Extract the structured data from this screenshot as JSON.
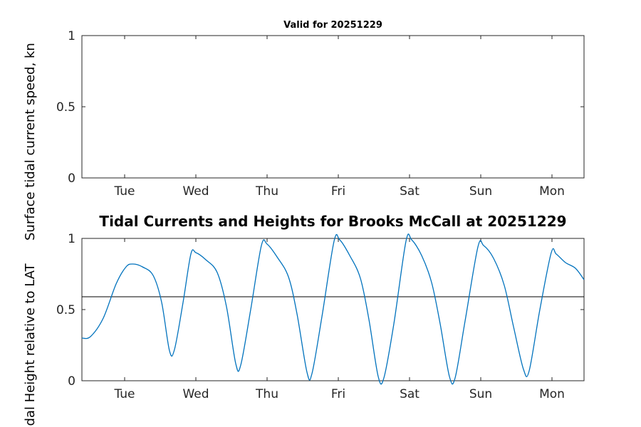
{
  "figure": {
    "background": "#ffffff",
    "axis_color": "#262626",
    "text_color": "#262626"
  },
  "chart_data": [
    {
      "type": "line",
      "title": "Valid for 20251229",
      "ylabel": "Surface tidal current speed, kn",
      "xlim": [
        0.4,
        7.45
      ],
      "ylim": [
        0,
        1
      ],
      "grid": false,
      "box": true,
      "axis_color": "#262626",
      "x_ticks": [
        {
          "value": 1,
          "label": "Tue"
        },
        {
          "value": 2,
          "label": "Wed"
        },
        {
          "value": 3,
          "label": "Thu"
        },
        {
          "value": 4,
          "label": "Fri"
        },
        {
          "value": 5,
          "label": "Sat"
        },
        {
          "value": 6,
          "label": "Sun"
        },
        {
          "value": 7,
          "label": "Mon"
        }
      ],
      "y_ticks": [
        {
          "value": 0,
          "label": "0"
        },
        {
          "value": 0.5,
          "label": "0.5"
        },
        {
          "value": 1,
          "label": "1"
        }
      ],
      "series": []
    },
    {
      "type": "line",
      "title": "Tidal Currents and Heights for Brooks McCall at 20251229",
      "ylabel": "Tidal Height relative to LAT",
      "xlim": [
        0.4,
        7.45
      ],
      "ylim": [
        0,
        1
      ],
      "grid": false,
      "box": true,
      "axis_color": "#262626",
      "x_ticks": [
        {
          "value": 1,
          "label": "Tue"
        },
        {
          "value": 2,
          "label": "Wed"
        },
        {
          "value": 3,
          "label": "Thu"
        },
        {
          "value": 4,
          "label": "Fri"
        },
        {
          "value": 5,
          "label": "Sat"
        },
        {
          "value": 6,
          "label": "Sun"
        },
        {
          "value": 7,
          "label": "Mon"
        }
      ],
      "y_ticks": [
        {
          "value": 0,
          "label": "0"
        },
        {
          "value": 0.5,
          "label": "0.5"
        },
        {
          "value": 1,
          "label": "1"
        }
      ],
      "reference_line": {
        "y": 0.59,
        "color": "#000000"
      },
      "series": [
        {
          "name": "tidal_height",
          "color": "#0072BD",
          "points": [
            [
              0.4,
              0.3
            ],
            [
              0.52,
              0.31
            ],
            [
              0.7,
              0.44
            ],
            [
              0.88,
              0.68
            ],
            [
              1.02,
              0.8
            ],
            [
              1.12,
              0.82
            ],
            [
              1.25,
              0.8
            ],
            [
              1.4,
              0.74
            ],
            [
              1.52,
              0.55
            ],
            [
              1.63,
              0.21
            ],
            [
              1.7,
              0.22
            ],
            [
              1.82,
              0.55
            ],
            [
              1.93,
              0.89
            ],
            [
              2.0,
              0.9
            ],
            [
              2.14,
              0.85
            ],
            [
              2.3,
              0.76
            ],
            [
              2.43,
              0.52
            ],
            [
              2.56,
              0.12
            ],
            [
              2.63,
              0.11
            ],
            [
              2.77,
              0.5
            ],
            [
              2.92,
              0.95
            ],
            [
              3.0,
              0.96
            ],
            [
              3.14,
              0.87
            ],
            [
              3.3,
              0.73
            ],
            [
              3.42,
              0.47
            ],
            [
              3.56,
              0.06
            ],
            [
              3.63,
              0.05
            ],
            [
              3.77,
              0.45
            ],
            [
              3.94,
              0.98
            ],
            [
              4.02,
              0.99
            ],
            [
              4.16,
              0.88
            ],
            [
              4.31,
              0.72
            ],
            [
              4.43,
              0.43
            ],
            [
              4.56,
              0.03
            ],
            [
              4.64,
              0.02
            ],
            [
              4.78,
              0.4
            ],
            [
              4.95,
              0.98
            ],
            [
              5.03,
              0.99
            ],
            [
              5.17,
              0.88
            ],
            [
              5.31,
              0.69
            ],
            [
              5.43,
              0.4
            ],
            [
              5.56,
              0.03
            ],
            [
              5.64,
              0.02
            ],
            [
              5.78,
              0.42
            ],
            [
              5.96,
              0.94
            ],
            [
              6.04,
              0.95
            ],
            [
              6.18,
              0.86
            ],
            [
              6.33,
              0.67
            ],
            [
              6.46,
              0.38
            ],
            [
              6.6,
              0.08
            ],
            [
              6.68,
              0.07
            ],
            [
              6.83,
              0.5
            ],
            [
              6.99,
              0.9
            ],
            [
              7.06,
              0.89
            ],
            [
              7.19,
              0.83
            ],
            [
              7.33,
              0.79
            ],
            [
              7.45,
              0.71
            ]
          ]
        }
      ]
    }
  ]
}
